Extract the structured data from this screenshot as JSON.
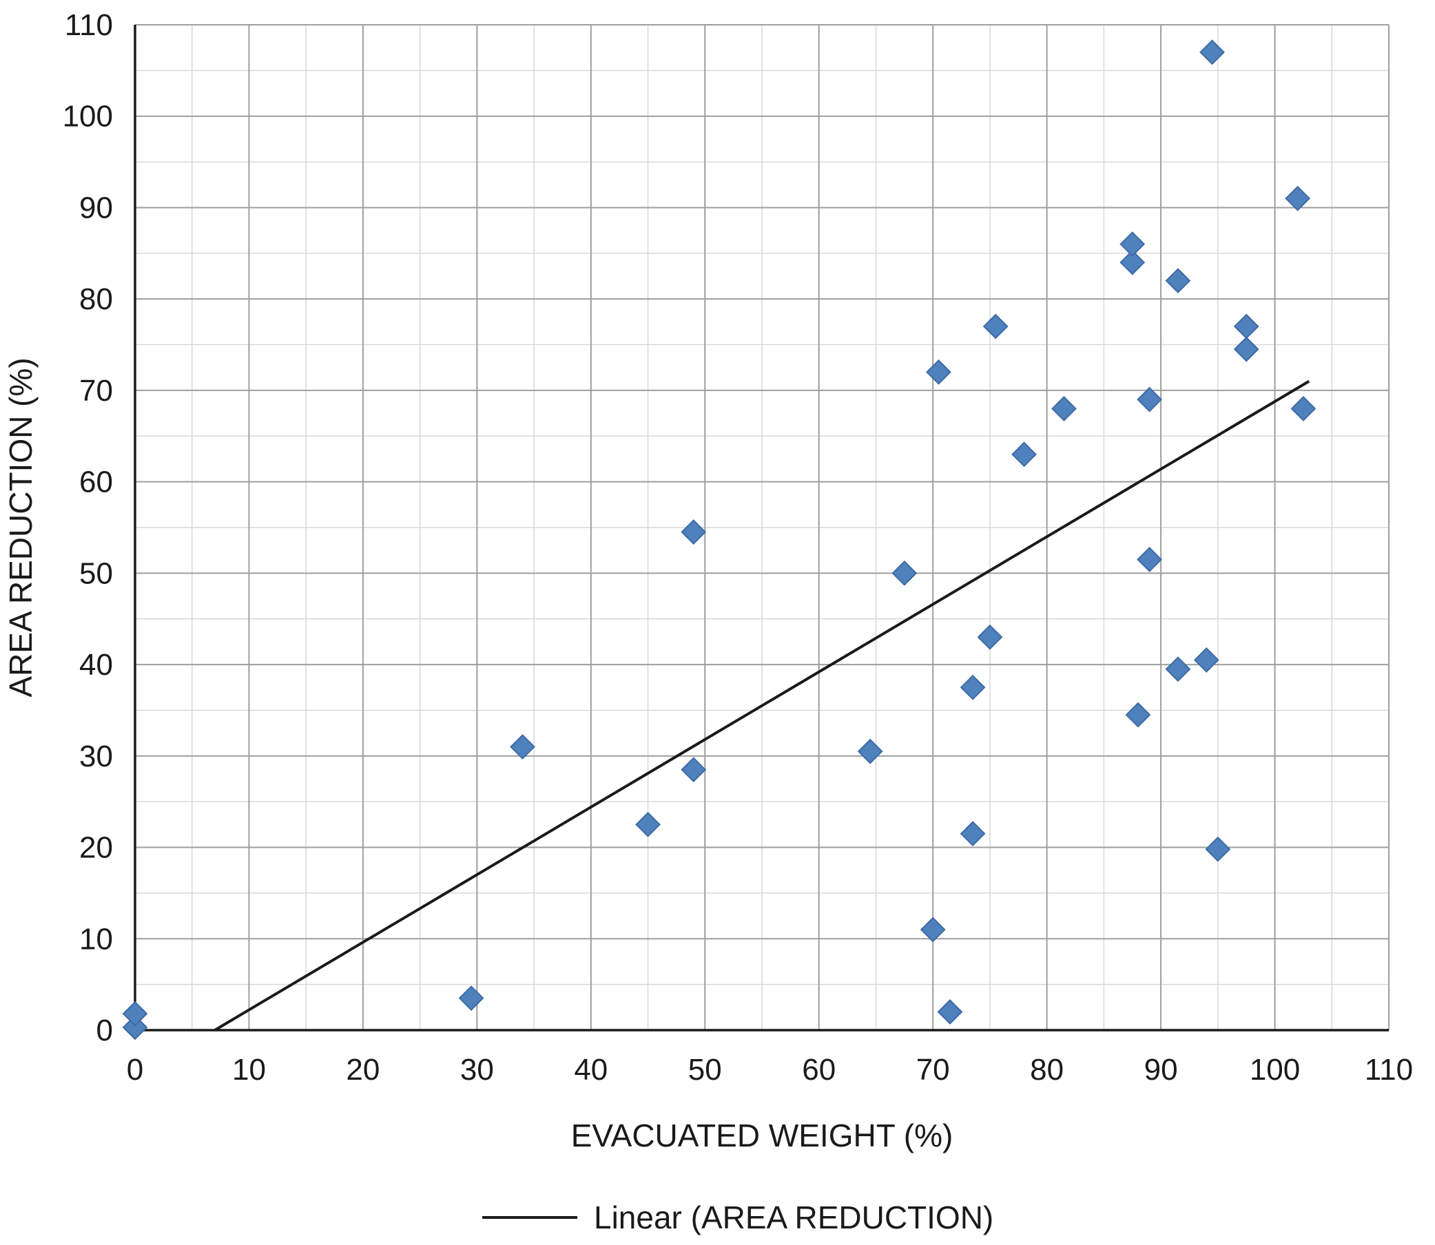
{
  "page": {
    "background": "#ffffff"
  },
  "chart_data": {
    "type": "scatter",
    "title": "",
    "xlabel": "EVACUATED WEIGHT (%)",
    "ylabel": "AREA REDUCTION (%)",
    "legend_label": "Linear (AREA REDUCTION)",
    "legend_position": "bottom",
    "xlim": [
      0,
      110
    ],
    "ylim": [
      0,
      110
    ],
    "tick_step": 10,
    "minor_step": 5,
    "grid": true,
    "axis_color": "#1a1a1a",
    "major_grid_color": "#9e9e9e",
    "minor_grid_color": "#d9d9d9",
    "marker_color": "#4f81bd",
    "marker_edge_color": "#3d6ba5",
    "trendline_color": "#1a1a1a",
    "series": [
      {
        "name": "AREA REDUCTION",
        "marker": "diamond",
        "points": [
          [
            0,
            0.3
          ],
          [
            0,
            1.8
          ],
          [
            29.5,
            3.5
          ],
          [
            34,
            31
          ],
          [
            45,
            22.5
          ],
          [
            49,
            28.5
          ],
          [
            49,
            54.5
          ],
          [
            64.5,
            30.5
          ],
          [
            67.5,
            50
          ],
          [
            70,
            11
          ],
          [
            70.5,
            72
          ],
          [
            71.5,
            2
          ],
          [
            73.5,
            21.5
          ],
          [
            73.5,
            37.5
          ],
          [
            75,
            43
          ],
          [
            75.5,
            77
          ],
          [
            78,
            63
          ],
          [
            81.5,
            68
          ],
          [
            87.5,
            84
          ],
          [
            87.5,
            86
          ],
          [
            88,
            34.5
          ],
          [
            89,
            51.5
          ],
          [
            89,
            69
          ],
          [
            91.5,
            39.5
          ],
          [
            91.5,
            82
          ],
          [
            94,
            40.5
          ],
          [
            94.5,
            107
          ],
          [
            95,
            19.8
          ],
          [
            97.5,
            74.5
          ],
          [
            97.5,
            77
          ],
          [
            102,
            91
          ],
          [
            102.5,
            68
          ]
        ]
      }
    ],
    "trendline": {
      "type": "linear",
      "start": [
        7,
        0
      ],
      "end": [
        103,
        71
      ]
    }
  }
}
